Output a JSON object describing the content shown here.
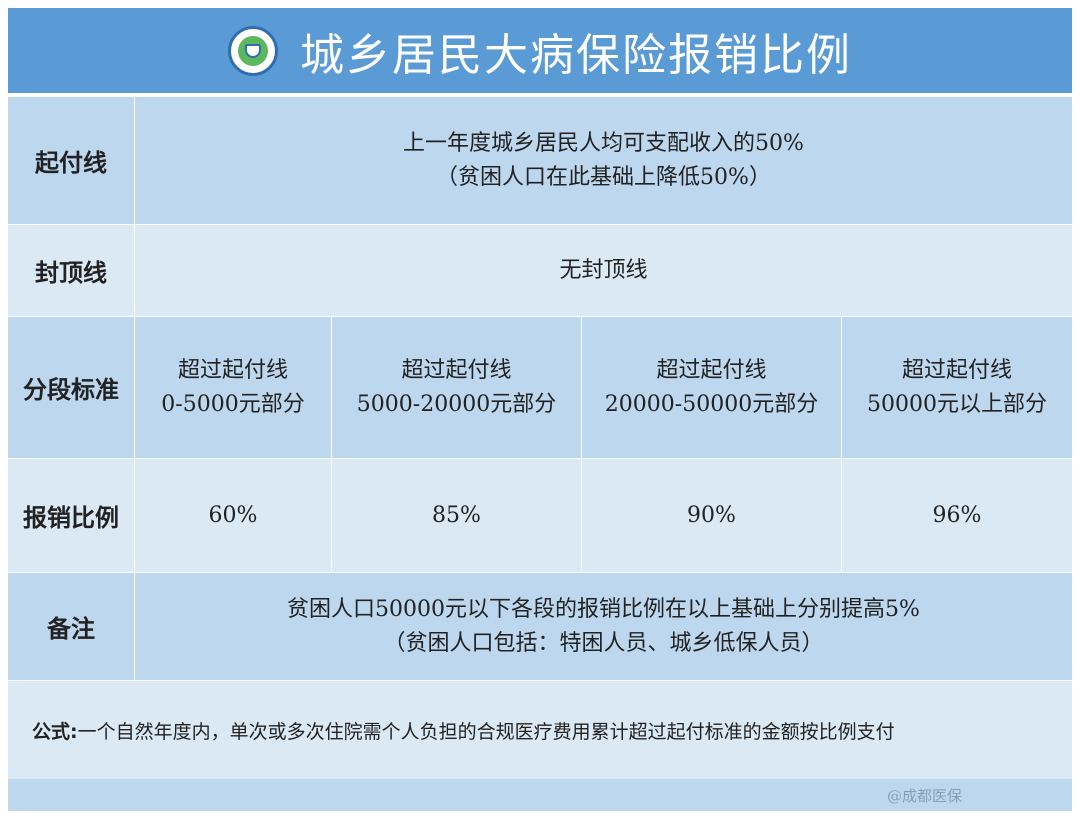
{
  "header": {
    "title": "城乡居民大病保险报销比例",
    "logo_icon": "chis-shield-logo"
  },
  "rows": {
    "deductible": {
      "label": "起付线",
      "line1": "上一年度城乡居民人均可支配收入的50%",
      "line2": "（贫困人口在此基础上降低50%）"
    },
    "cap": {
      "label": "封顶线",
      "value": "无封顶线"
    },
    "segments": {
      "label": "分段标准",
      "cells": [
        {
          "line1": "超过起付线",
          "line2": "0-5000元部分"
        },
        {
          "line1": "超过起付线",
          "line2": "5000-20000元部分"
        },
        {
          "line1": "超过起付线",
          "line2": "20000-50000元部分"
        },
        {
          "line1": "超过起付线",
          "line2": "50000元以上部分"
        }
      ]
    },
    "ratio": {
      "label": "报销比例",
      "values": [
        "60%",
        "85%",
        "90%",
        "96%"
      ]
    },
    "notes": {
      "label": "备注",
      "line1": "贫困人口50000元以下各段的报销比例在以上基础上分别提高5%",
      "line2": "（贫困人口包括：特困人员、城乡低保人员）"
    }
  },
  "formula": {
    "prefix": "公式:",
    "text": "一个自然年度内，单次或多次住院需个人负担的合规医疗费用累计超过起付标准的金额按比例支付"
  },
  "footer": {
    "credit": "@成都医保"
  },
  "colors": {
    "header": "#5b9bd5",
    "dark_row": "#bdd7ee",
    "light_row": "#dbe9f5"
  }
}
